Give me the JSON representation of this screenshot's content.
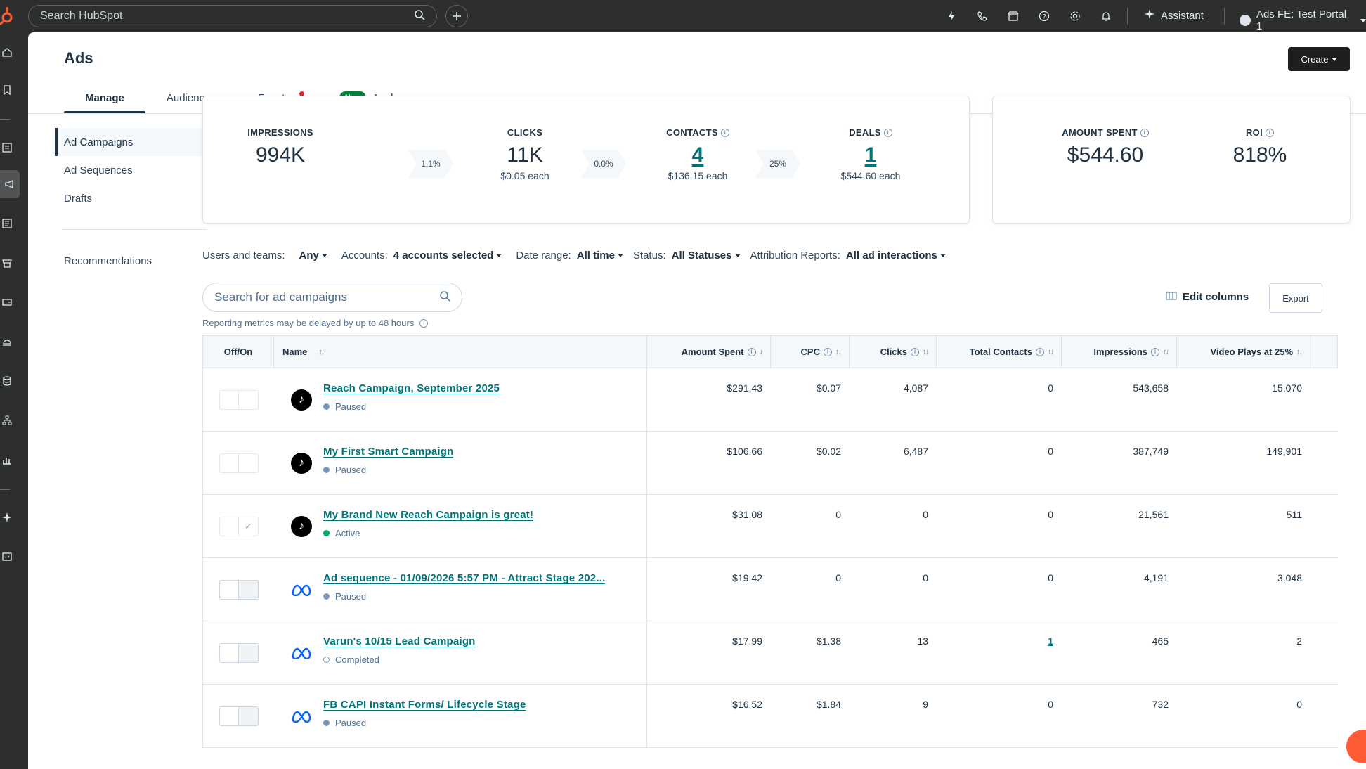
{
  "topbar": {
    "search_placeholder": "Search HubSpot",
    "assistant_label": "Assistant",
    "account_label": "Ads FE: Test Portal 1"
  },
  "page": {
    "title": "Ads",
    "create_label": "Create"
  },
  "tabs": [
    {
      "label": "Manage",
      "active": true
    },
    {
      "label": "Audiences"
    },
    {
      "label": "Events"
    },
    {
      "label": "Analyze",
      "badge": "New"
    }
  ],
  "side_menu": {
    "items": [
      "Ad Campaigns",
      "Ad Sequences",
      "Drafts"
    ],
    "recommendations": "Recommendations"
  },
  "funnel": {
    "impressions": {
      "label": "IMPRESSIONS",
      "value": "994K"
    },
    "rate1": "1.1%",
    "clicks": {
      "label": "CLICKS",
      "value": "11K",
      "sub": "$0.05 each"
    },
    "rate2": "0.0%",
    "contacts": {
      "label": "CONTACTS",
      "value": "4",
      "sub": "$136.15 each"
    },
    "rate3": "25%",
    "deals": {
      "label": "DEALS",
      "value": "1",
      "sub": "$544.60 each"
    }
  },
  "spend": {
    "amount": {
      "label": "AMOUNT SPENT",
      "value": "$544.60"
    },
    "roi": {
      "label": "ROI",
      "value": "818%"
    }
  },
  "filters": {
    "users_label": "Users and teams:",
    "users_value": "Any",
    "accounts_label": "Accounts:",
    "accounts_value": "4 accounts selected",
    "date_label": "Date range:",
    "date_value": "All time",
    "status_label": "Status:",
    "status_value": "All Statuses",
    "attr_label": "Attribution Reports:",
    "attr_value": "All ad interactions"
  },
  "table_tools": {
    "search_placeholder": "Search for ad campaigns",
    "delay_note": "Reporting metrics may be delayed by up to 48 hours",
    "edit_columns": "Edit columns",
    "export": "Export"
  },
  "table": {
    "headers": {
      "off_on": "Off/On",
      "name": "Name",
      "amount": "Amount Spent",
      "cpc": "CPC",
      "clicks": "Clicks",
      "contacts": "Total Contacts",
      "impressions": "Impressions",
      "video": "Video Plays at 25%"
    },
    "rows": [
      {
        "name": "Reach Campaign, September 2025",
        "status": "Paused",
        "amount": "$291.43",
        "cpc": "$0.07",
        "clicks": "4,087",
        "contacts": "0",
        "impressions": "543,658",
        "video": "15,070"
      },
      {
        "name": "My First Smart Campaign",
        "status": "Paused",
        "amount": "$106.66",
        "cpc": "$0.02",
        "clicks": "6,487",
        "contacts": "0",
        "impressions": "387,749",
        "video": "149,901"
      },
      {
        "name": "My Brand New Reach Campaign is great!",
        "status": "Active",
        "amount": "$31.08",
        "cpc": "0",
        "clicks": "0",
        "contacts": "0",
        "impressions": "21,561",
        "video": "511"
      },
      {
        "name": "Ad sequence - 01/09/2026 5:57 PM - Attract Stage 202...",
        "status": "Paused",
        "amount": "$19.42",
        "cpc": "0",
        "clicks": "0",
        "contacts": "0",
        "impressions": "4,191",
        "video": "3,048"
      },
      {
        "name": "Varun's 10/15 Lead Campaign",
        "status": "Completed",
        "amount": "$17.99",
        "cpc": "$1.38",
        "clicks": "13",
        "contacts": "1",
        "impressions": "465",
        "video": "2"
      },
      {
        "name": "FB CAPI Instant Forms/ Lifecycle Stage",
        "status": "Paused",
        "amount": "$16.52",
        "cpc": "$1.84",
        "clicks": "9",
        "contacts": "0",
        "impressions": "732",
        "video": "0"
      }
    ]
  },
  "colors": {
    "accent_link": "#00767a",
    "brand_orange": "#ff5c35",
    "active_status": "#00a86b",
    "new_badge": "#00823a"
  }
}
